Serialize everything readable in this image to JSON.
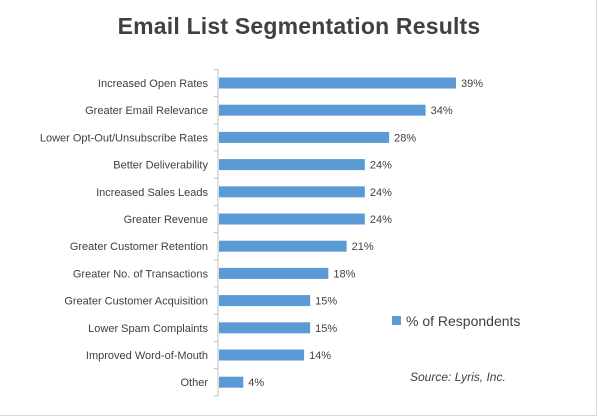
{
  "chart_data": {
    "type": "bar",
    "orientation": "horizontal",
    "title": "Email List Segmentation Results",
    "categories": [
      "Increased Open Rates",
      "Greater Email Relevance",
      "Lower Opt-Out/Unsubscribe Rates",
      "Better Deliverability",
      "Increased Sales Leads",
      "Greater Revenue",
      "Greater Customer Retention",
      "Greater No. of Transactions",
      "Greater Customer Acquisition",
      "Lower Spam Complaints",
      "Improved Word-of-Mouth",
      "Other"
    ],
    "series": [
      {
        "name": "% of Respondents",
        "values": [
          39,
          34,
          28,
          24,
          24,
          24,
          21,
          18,
          15,
          15,
          14,
          4
        ],
        "labels": [
          "39%",
          "34%",
          "28%",
          "24%",
          "24%",
          "24%",
          "21%",
          "18%",
          "15%",
          "15%",
          "14%",
          "4%"
        ]
      }
    ],
    "legend": "right",
    "grid": false,
    "bar_color": "#5b9bd5",
    "source": "Source: Lyris, Inc."
  }
}
